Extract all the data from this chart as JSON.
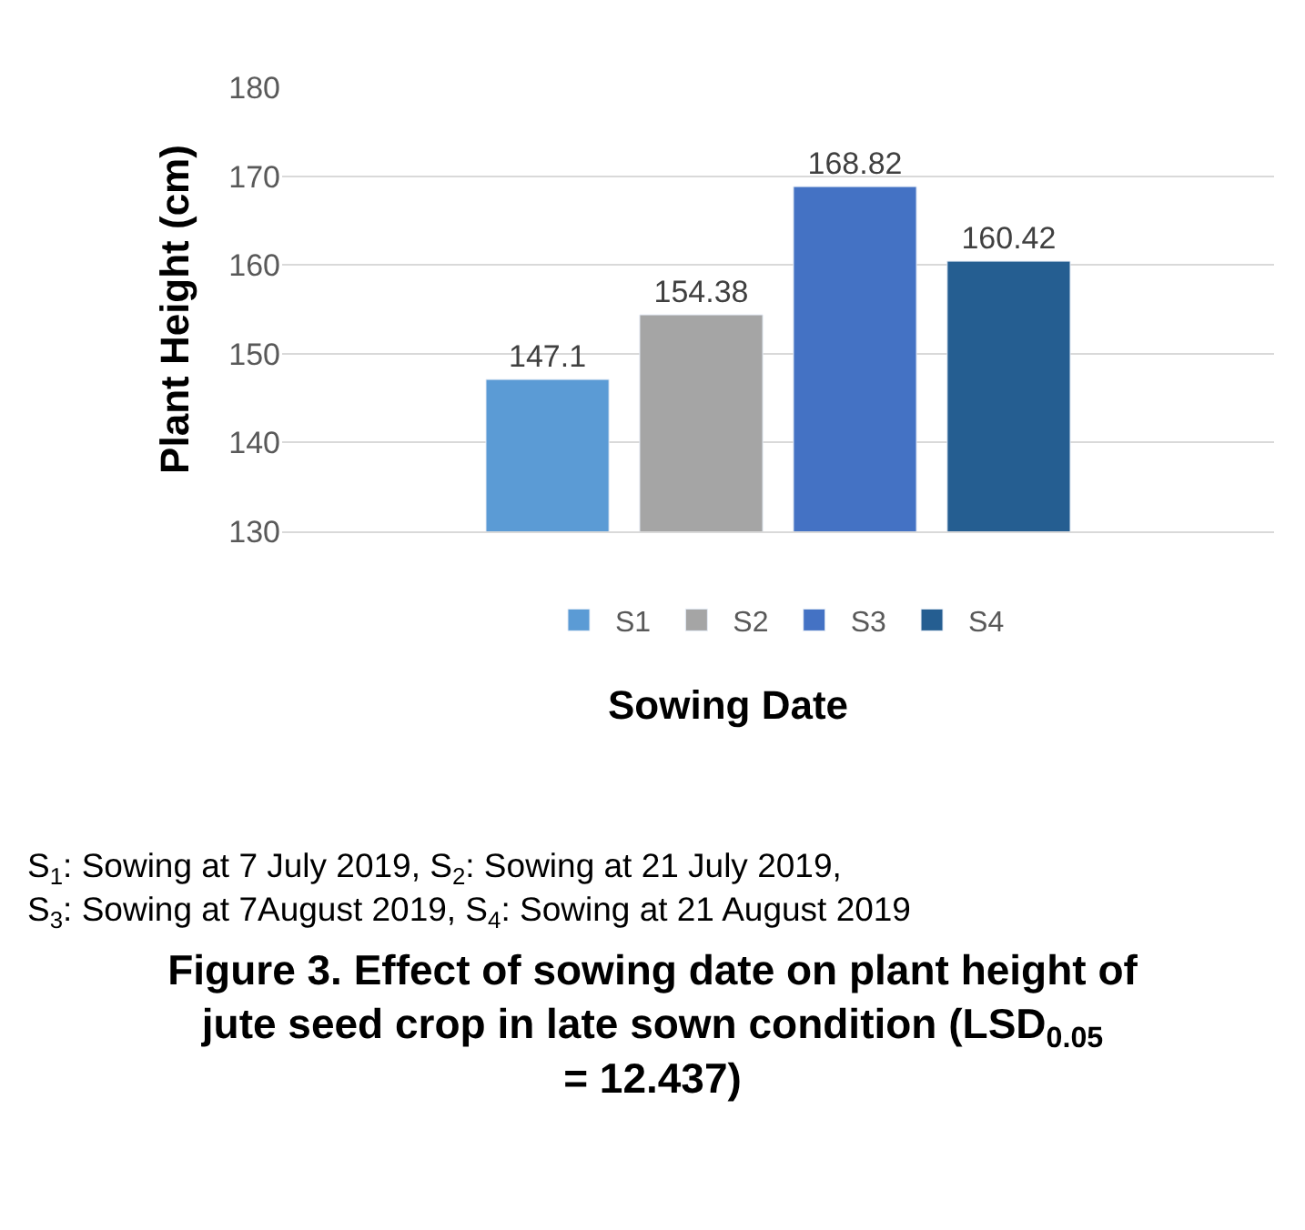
{
  "chart_data": {
    "type": "bar",
    "title": "Figure 3. Effect of sowing date on plant height of jute seed crop in late sown condition (LSD$_{0.05}$ = 12.437)",
    "xlabel": "Sowing Date",
    "ylabel": "Plant Height (cm)",
    "categories": [
      null
    ],
    "series": [
      {
        "name": "S1",
        "color": "#5b9bd5",
        "values": [
          147.1
        ]
      },
      {
        "name": "S2",
        "color": "#a5a5a5",
        "values": [
          154.38
        ]
      },
      {
        "name": "S3",
        "color": "#4472c4",
        "values": [
          168.82
        ]
      },
      {
        "name": "S4",
        "color": "#255e91",
        "values": [
          160.42
        ]
      }
    ],
    "ylim": [
      130,
      180
    ],
    "yticks": [
      130,
      140,
      150,
      160,
      170,
      180
    ],
    "grid": "y",
    "legend": "bottom",
    "data_labels": true,
    "tick_labels": "y",
    "annotations": [
      "S$_{1}$: Sowing at 7 July 2019, S$_{2}$: Sowing at 21 July 2019, S$_{3}$: Sowing at 7August 2019, S$_{4}$: Sowing at 21 August 2019"
    ]
  }
}
